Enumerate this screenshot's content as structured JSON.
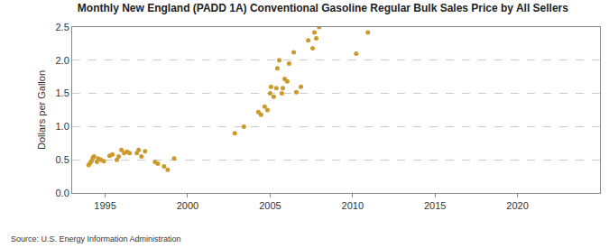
{
  "chart_data": {
    "type": "scatter",
    "title": "Monthly New England (PADD 1A) Conventional Gasoline Regular Bulk Sales Price by All Sellers",
    "y_label": "Dollars per Gallon",
    "annotations": [
      "Source: U.S. Energy Information Administration"
    ],
    "x": [
      1994.0,
      1994.08,
      1994.17,
      1994.25,
      1994.33,
      1994.5,
      1994.58,
      1994.75,
      1994.92,
      1995.27,
      1995.44,
      1995.71,
      1995.82,
      1995.99,
      1996.15,
      1996.32,
      1996.48,
      1996.92,
      1997.03,
      1997.2,
      1997.42,
      1998.02,
      1998.19,
      1998.57,
      1998.79,
      1999.18,
      2002.86,
      2003.41,
      2004.29,
      2004.45,
      2004.67,
      2004.84,
      2005.0,
      2005.05,
      2005.22,
      2005.38,
      2005.44,
      2005.55,
      2005.71,
      2005.77,
      2005.88,
      2006.04,
      2006.15,
      2006.43,
      2006.59,
      2006.87,
      2007.31,
      2007.58,
      2007.69,
      2007.8,
      2007.97,
      2010.22,
      2010.93
    ],
    "values": [
      0.42,
      0.45,
      0.48,
      0.53,
      0.55,
      0.47,
      0.52,
      0.5,
      0.48,
      0.56,
      0.58,
      0.5,
      0.55,
      0.65,
      0.6,
      0.62,
      0.6,
      0.6,
      0.65,
      0.55,
      0.63,
      0.47,
      0.44,
      0.4,
      0.35,
      0.52,
      0.9,
      1.0,
      1.22,
      1.18,
      1.3,
      1.25,
      1.5,
      1.6,
      1.45,
      1.58,
      1.88,
      2.0,
      1.5,
      1.58,
      1.72,
      1.68,
      1.95,
      2.12,
      1.52,
      1.6,
      2.3,
      2.18,
      2.42,
      2.33,
      2.5,
      2.1,
      2.42
    ],
    "color": "#cc9a2a",
    "marker": "circle",
    "xlim": [
      1993,
      2025
    ],
    "xticks": [
      1995,
      2000,
      2005,
      2010,
      2015,
      2020
    ],
    "ylim": [
      0,
      2.5
    ],
    "yticks": [
      {
        "value": 0,
        "label": "0.0"
      },
      0.5,
      {
        "value": 1,
        "label": "1.0"
      },
      1.5,
      {
        "value": 2,
        "label": "2.0"
      },
      2.5
    ],
    "grid": true
  }
}
